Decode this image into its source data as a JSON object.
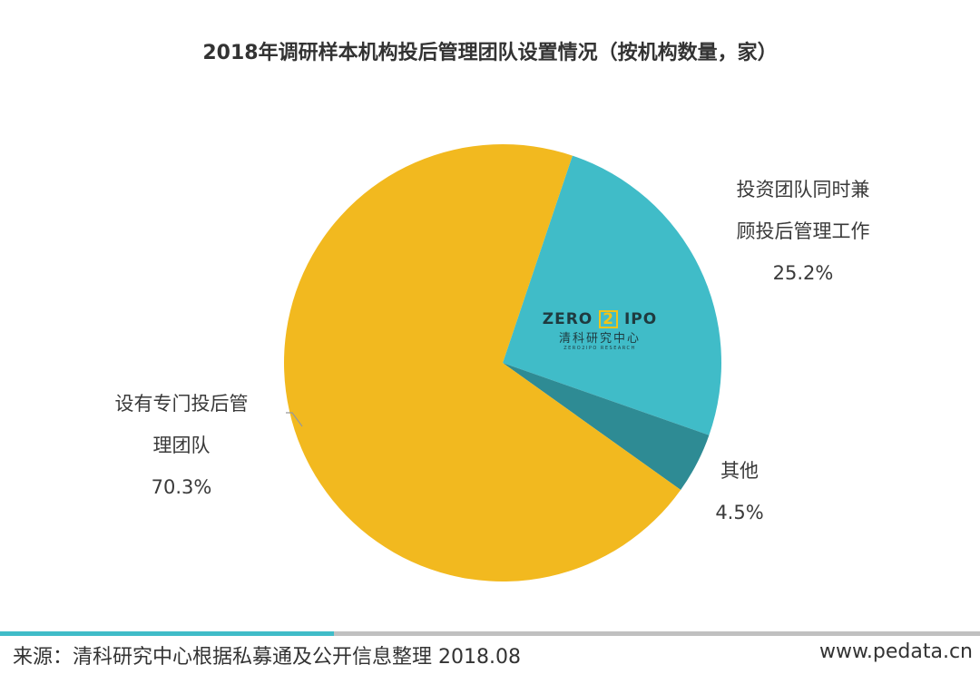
{
  "title": "2018年调研样本机构投后管理团队设置情况（按机构数量，家）",
  "chart_data": {
    "type": "pie",
    "title": "2018年调研样本机构投后管理团队设置情况（按机构数量，家）",
    "categories": [
      "投资团队同时兼顾投后管理工作",
      "其他",
      "设有专门投后管理团队"
    ],
    "values": [
      25.2,
      4.5,
      70.3
    ],
    "unit": "%",
    "colors": [
      "#40bcc8",
      "#2e8b94",
      "#f2b91f"
    ],
    "start_angle_deg": 18.6,
    "direction": "clockwise"
  },
  "labels": {
    "team_concurrent": {
      "line1": "投资团队同时兼",
      "line2": "顾投后管理工作",
      "pct": "25.2%"
    },
    "other": {
      "line1": "其他",
      "pct": "4.5%"
    },
    "dedicated": {
      "line1": "设有专门投后管",
      "line2": "理团队",
      "pct": "70.3%"
    }
  },
  "watermark": {
    "en_left": "ZERO",
    "en_mid": "2",
    "en_right": "IPO",
    "cn": "清科研究中心",
    "sub": "ZERO2IPO RESEARCH"
  },
  "footer": {
    "source": "来源：清科研究中心根据私募通及公开信息整理  2018.08",
    "website": "www.pedata.cn"
  },
  "colors": {
    "accent_bar": "#40bcc8",
    "grey_bar": "#c0c0c0"
  }
}
